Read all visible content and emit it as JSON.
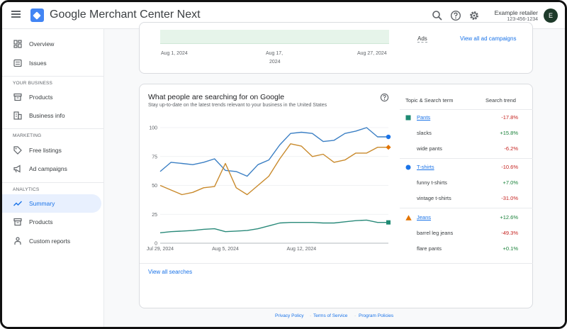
{
  "header": {
    "app_title": "Google Merchant Center Next",
    "account_name": "Example retailer",
    "account_id": "123-456-1234",
    "avatar_letter": "E"
  },
  "sidebar": {
    "items_top": [
      {
        "label": "Overview",
        "icon": "overview-icon"
      },
      {
        "label": "Issues",
        "icon": "issues-icon"
      }
    ],
    "section_business": "YOUR BUSINESS",
    "items_business": [
      {
        "label": "Products",
        "icon": "products-icon"
      },
      {
        "label": "Business info",
        "icon": "business-icon"
      }
    ],
    "section_marketing": "MARKETING",
    "items_marketing": [
      {
        "label": "Free listings",
        "icon": "tag-icon"
      },
      {
        "label": "Ad campaigns",
        "icon": "megaphone-icon"
      }
    ],
    "section_analytics": "ANALYTICS",
    "items_analytics": [
      {
        "label": "Summary",
        "icon": "trending-icon",
        "active": true
      },
      {
        "label": "Products",
        "icon": "products-icon"
      },
      {
        "label": "Custom reports",
        "icon": "reports-icon"
      }
    ]
  },
  "top_card": {
    "x_ticks": [
      "Aug 1, 2024",
      "Aug 17,",
      "2024",
      "Aug 27, 2024"
    ],
    "ads_label": "Ads",
    "view_all_ads": "View all ad campaigns"
  },
  "search_card": {
    "title": "What people are searching for on Google",
    "subtitle": "Stay up-to-date on the latest trends relevant to your business in the United States",
    "col_topic": "Topic & Search term",
    "col_trend": "Search trend",
    "view_all": "View all searches",
    "topics": [
      {
        "name": "Pants",
        "trend": "-17.8%",
        "dir": "neg",
        "marker": "square",
        "color": "#1e8a73",
        "terms": [
          {
            "name": "slacks",
            "trend": "+15.8%",
            "dir": "pos"
          },
          {
            "name": "wide pants",
            "trend": "-6.2%",
            "dir": "neg"
          }
        ]
      },
      {
        "name": "T-shirts",
        "trend": "-10.6%",
        "dir": "neg",
        "marker": "circle",
        "color": "#1a73e8",
        "terms": [
          {
            "name": "funny t-shirts",
            "trend": "+7.0%",
            "dir": "pos"
          },
          {
            "name": "vintage t-shirts",
            "trend": "-31.0%",
            "dir": "neg"
          }
        ]
      },
      {
        "name": "Jeans",
        "trend": "+12.6%",
        "dir": "pos",
        "marker": "triangle",
        "color": "#e37400",
        "terms": [
          {
            "name": "barrel leg jeans",
            "trend": "-49.3%",
            "dir": "neg"
          },
          {
            "name": "flare pants",
            "trend": "+0.1%",
            "dir": "pos"
          }
        ]
      }
    ]
  },
  "chart_data": {
    "type": "line",
    "title": "",
    "xlabel": "",
    "ylabel": "",
    "ylim": [
      0,
      100
    ],
    "y_ticks": [
      0,
      25,
      50,
      75,
      100
    ],
    "x_tick_labels": [
      {
        "label": "Jul 29, 2024",
        "index": 0
      },
      {
        "label": "Aug 5, 2024",
        "index": 6
      },
      {
        "label": "Aug 12, 2024",
        "index": 13
      }
    ],
    "x": [
      0,
      1,
      2,
      3,
      4,
      5,
      6,
      7,
      8,
      9,
      10,
      11,
      12,
      13,
      14,
      15,
      16,
      17,
      18,
      19,
      20,
      21
    ],
    "series": [
      {
        "name": "T-shirts",
        "color": "#3b7fc4",
        "marker": "circle",
        "values": [
          62,
          70,
          69,
          68,
          70,
          73,
          63,
          62,
          58,
          68,
          72,
          85,
          95,
          96,
          95,
          88,
          89,
          95,
          97,
          100,
          92,
          92
        ]
      },
      {
        "name": "Jeans",
        "color": "#c98a2c",
        "marker": "diamond",
        "values": [
          50,
          46,
          42,
          44,
          48,
          49,
          69,
          48,
          42,
          50,
          58,
          73,
          86,
          84,
          75,
          77,
          70,
          72,
          78,
          78,
          83,
          83
        ]
      },
      {
        "name": "Pants",
        "color": "#2a8a7a",
        "marker": "square",
        "values": [
          9,
          10,
          10.5,
          11,
          12,
          12.5,
          10,
          10.5,
          11,
          12.5,
          15,
          17.5,
          18,
          18,
          18,
          17.5,
          17.5,
          18.5,
          19.5,
          20,
          18,
          18
        ]
      }
    ]
  },
  "footer": {
    "privacy": "Privacy Policy",
    "terms": "Terms of Service",
    "programs": "Program Policies",
    "sep": "·"
  }
}
